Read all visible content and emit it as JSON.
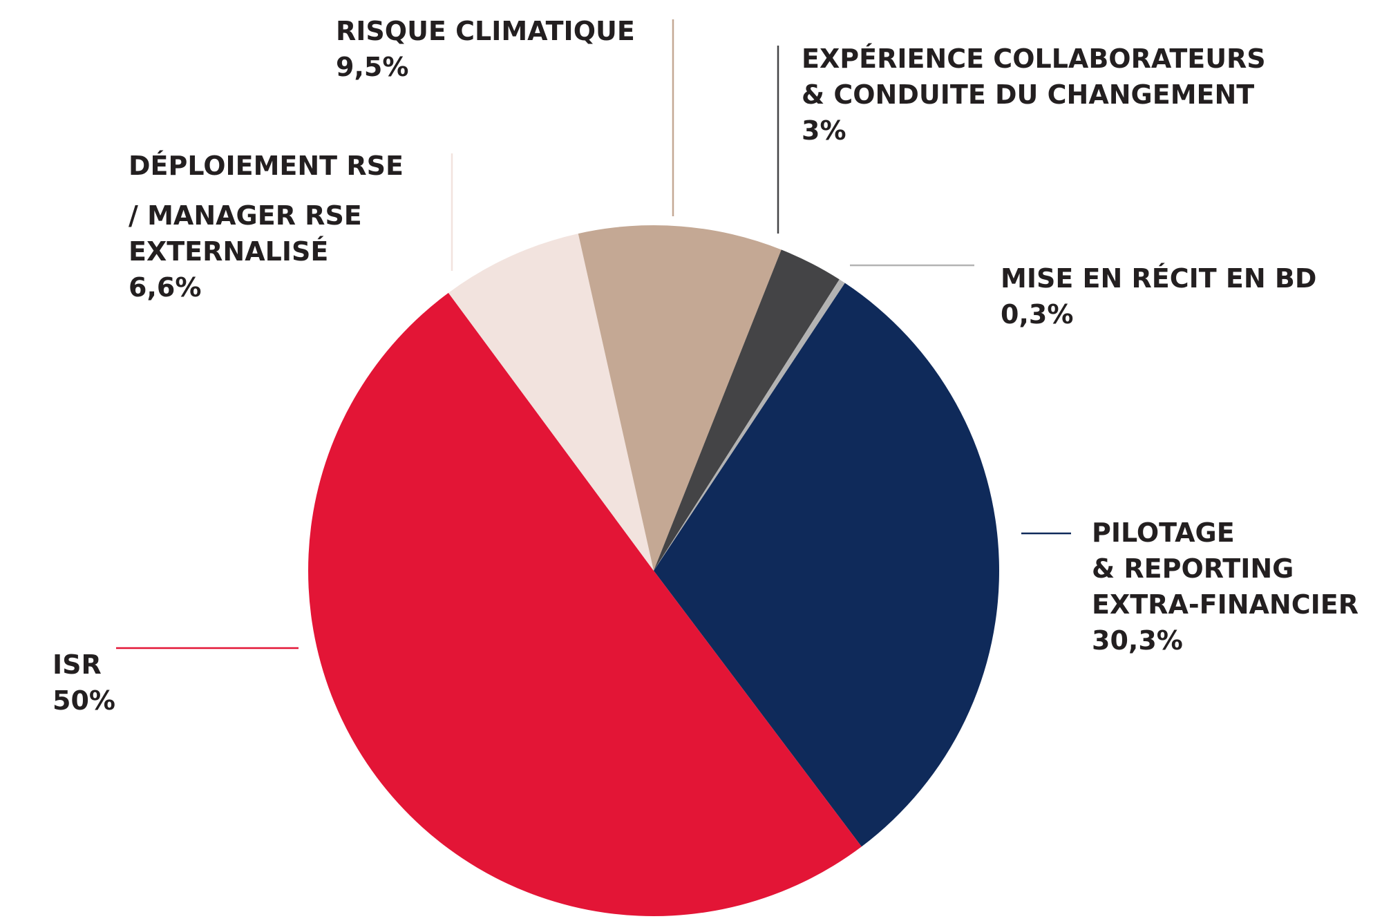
{
  "chart_data": {
    "type": "pie",
    "title": "",
    "slices": [
      {
        "label_lines": [
          "PILOTAGE",
          "& REPORTING",
          "EXTRA-FINANCIER"
        ],
        "value": 30.3,
        "value_label": "30,3%",
        "color": "#0f2a5a"
      },
      {
        "label_lines": [
          "ISR"
        ],
        "value": 50,
        "value_label": "50%",
        "color": "#e31536"
      },
      {
        "label_lines": [
          "DÉPLOIEMENT RSE",
          "/ MANAGER RSE",
          "EXTERNALISÉ"
        ],
        "value": 6.6,
        "value_label": "6,6%",
        "color": "#f2e3de"
      },
      {
        "label_lines": [
          "RISQUE CLIMATIQUE"
        ],
        "value": 9.5,
        "value_label": "9,5%",
        "color": "#c4a894"
      },
      {
        "label_lines": [
          "EXPÉRIENCE COLLABORATEURS",
          "& CONDUITE DU CHANGEMENT"
        ],
        "value": 3,
        "value_label": "3%",
        "color": "#444446"
      },
      {
        "label_lines": [
          "MISE EN RÉCIT EN BD"
        ],
        "value": 0.3,
        "value_label": "0,3%",
        "color": "#b3b3b3"
      }
    ]
  }
}
